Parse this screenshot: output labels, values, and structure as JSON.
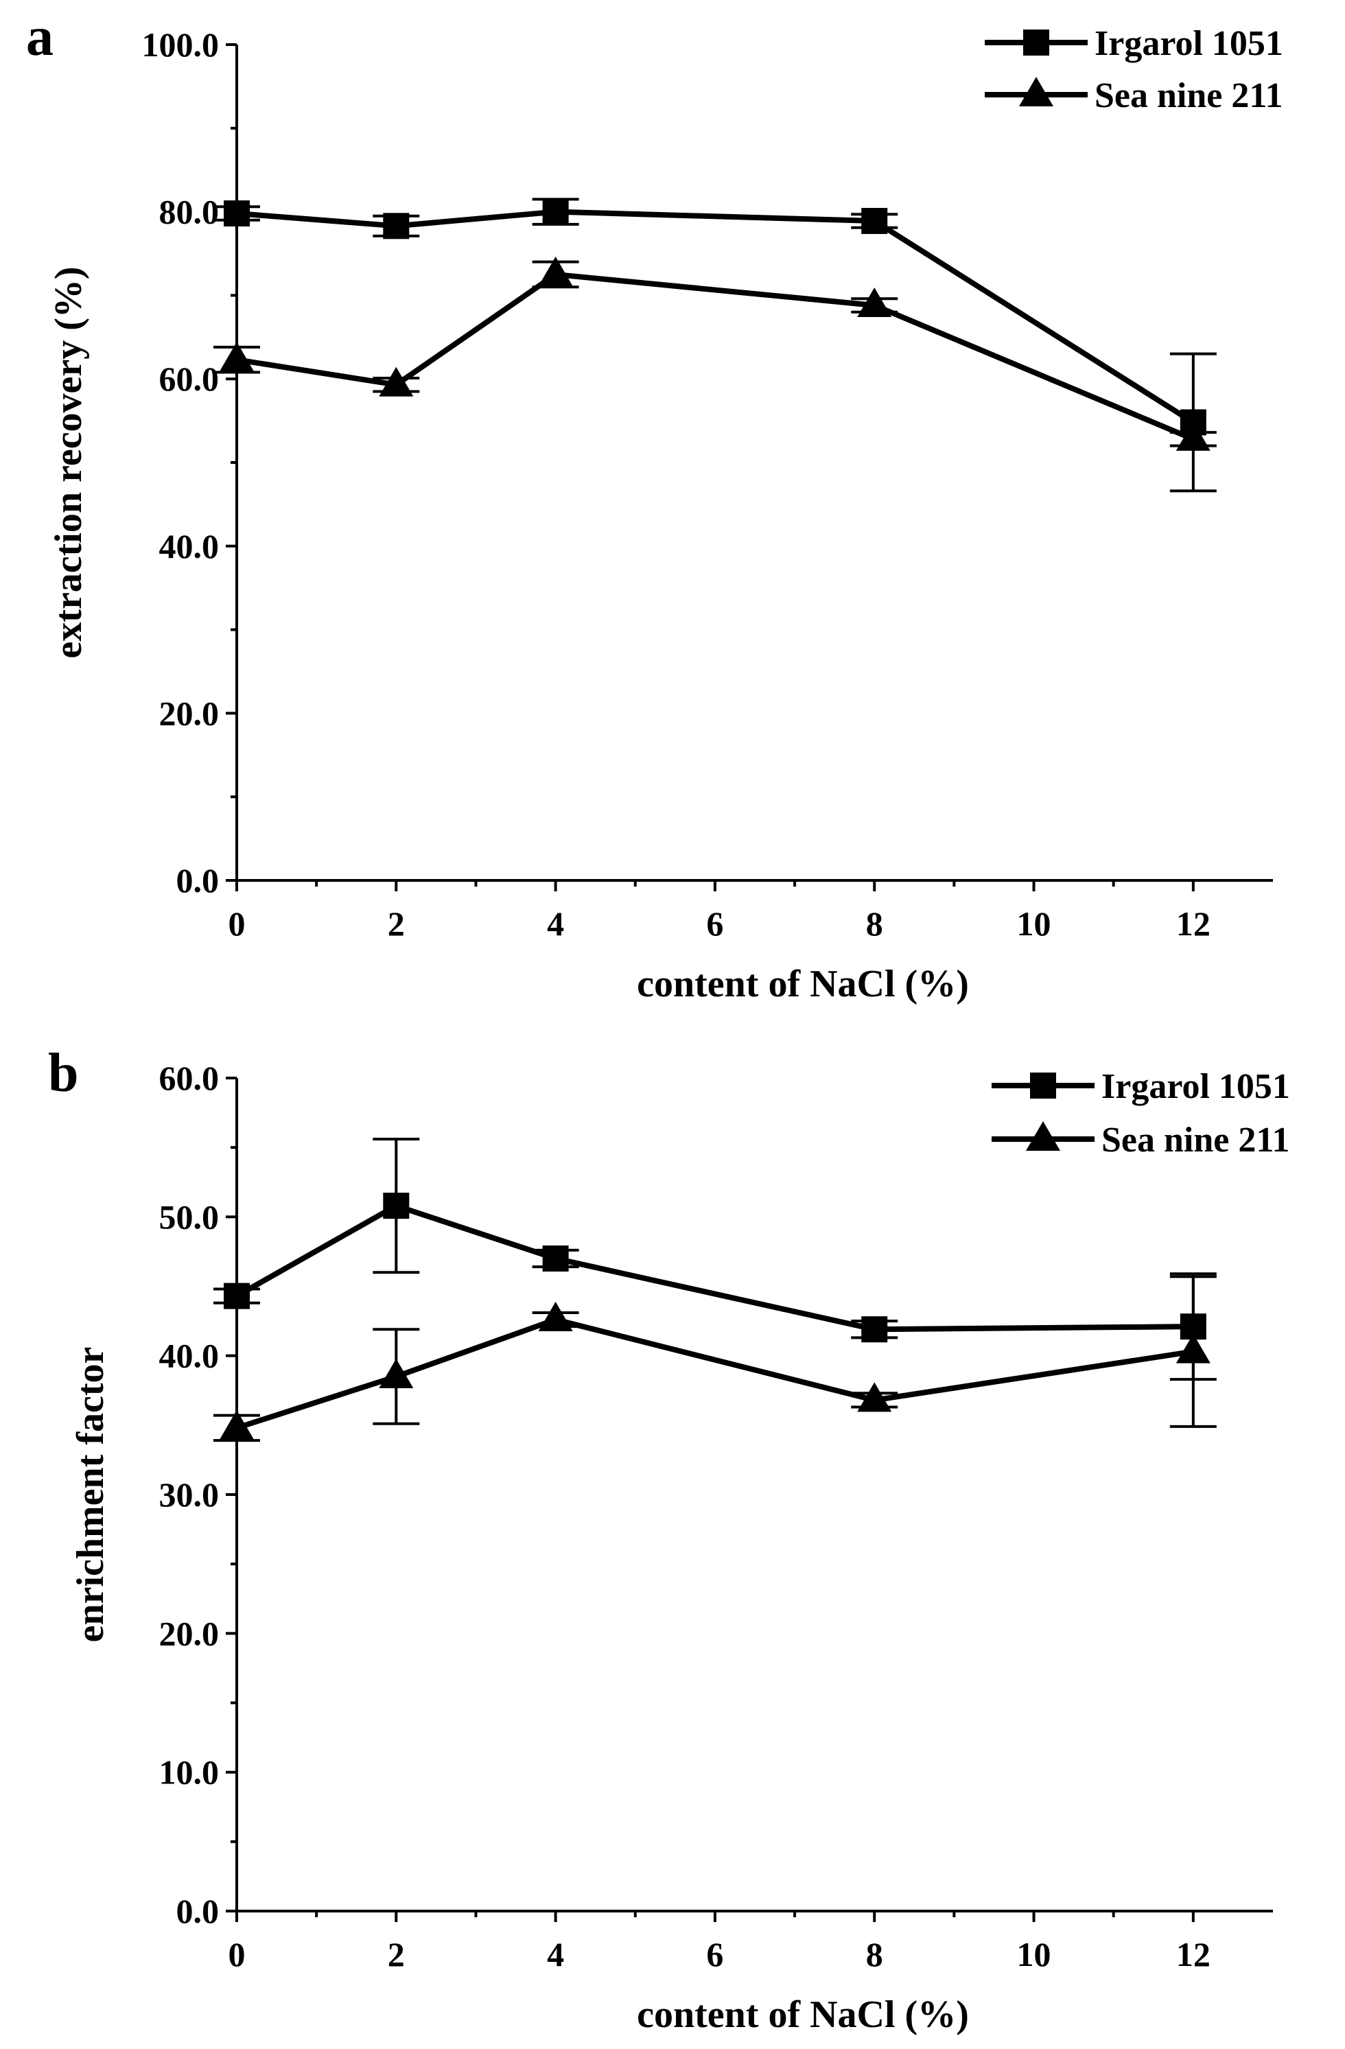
{
  "chart_data": [
    {
      "panel_label": "a",
      "type": "line",
      "xlabel": "content of NaCl (%)",
      "ylabel": "extraction recovery (%)",
      "xlim": [
        0,
        13
      ],
      "ylim": [
        0,
        100
      ],
      "x_ticks": [
        "0",
        "2",
        "4",
        "6",
        "8",
        "10",
        "12"
      ],
      "y_ticks": [
        "0.0",
        "20.0",
        "40.0",
        "60.0",
        "80.0",
        "100.0"
      ],
      "legend_position": "top-right",
      "series": [
        {
          "name": "Irgarol 1051",
          "marker": "square",
          "x": [
            0,
            2,
            4,
            8,
            12
          ],
          "values": [
            79.8,
            78.3,
            80.0,
            78.9,
            54.8
          ],
          "errors": [
            0.8,
            1.2,
            1.5,
            0.8,
            8.2
          ]
        },
        {
          "name": "Sea nine 211",
          "marker": "triangle",
          "x": [
            0,
            2,
            4,
            8,
            12
          ],
          "values": [
            62.3,
            59.3,
            72.5,
            68.8,
            52.8
          ],
          "errors": [
            1.5,
            0.8,
            1.5,
            0.8,
            0.8
          ]
        }
      ]
    },
    {
      "panel_label": "b",
      "type": "line",
      "xlabel": "content of NaCl (%)",
      "ylabel": "enrichment factor",
      "xlim": [
        0,
        13
      ],
      "ylim": [
        0,
        60
      ],
      "x_ticks": [
        "0",
        "2",
        "4",
        "6",
        "8",
        "10",
        "12"
      ],
      "y_ticks": [
        "0.0",
        "10.0",
        "20.0",
        "30.0",
        "40.0",
        "50.0",
        "60.0"
      ],
      "legend_position": "top-right",
      "series": [
        {
          "name": "Irgarol 1051",
          "marker": "square",
          "x": [
            0,
            2,
            4,
            8,
            12
          ],
          "values": [
            44.3,
            50.8,
            47.0,
            41.9,
            42.1
          ],
          "errors": [
            0.5,
            4.8,
            0.6,
            0.6,
            3.8
          ]
        },
        {
          "name": "Sea nine 211",
          "marker": "triangle",
          "x": [
            0,
            2,
            4,
            8,
            12
          ],
          "values": [
            34.8,
            38.5,
            42.6,
            36.8,
            40.3
          ],
          "errors": [
            0.9,
            3.4,
            0.5,
            0.5,
            5.4
          ]
        }
      ]
    }
  ]
}
